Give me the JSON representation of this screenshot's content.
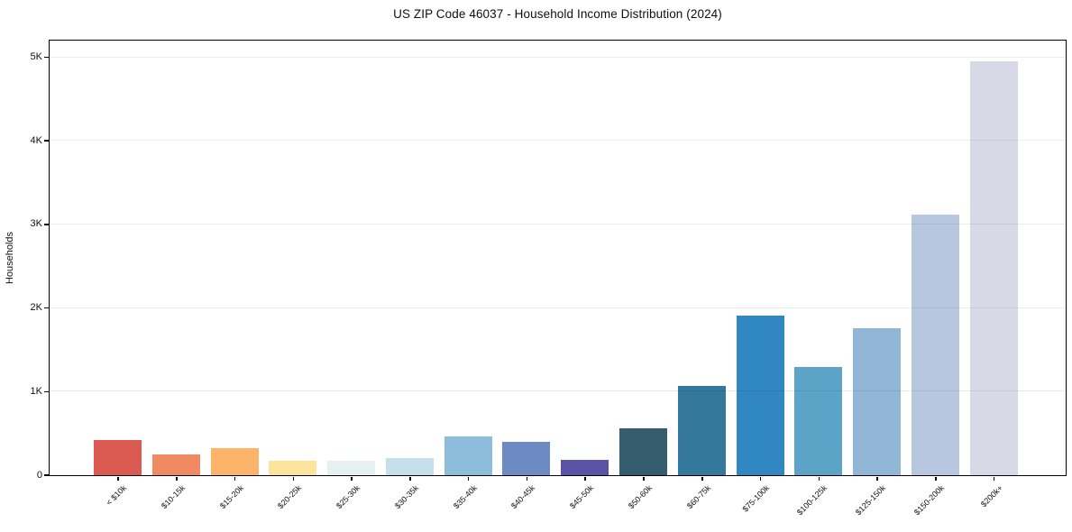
{
  "chart_data": {
    "type": "bar",
    "title": "US ZIP Code 46037 - Household Income Distribution (2024)",
    "xlabel": "",
    "ylabel": "Households",
    "categories": [
      "< $10k",
      "$10-15k",
      "$15-20k",
      "$20-25k",
      "$25-30k",
      "$30-35k",
      "$35-40k",
      "$40-45k",
      "$45-50k",
      "$50-60k",
      "$60-75k",
      "$75-100k",
      "$100-125k",
      "$125-150k",
      "$150-200k",
      "$200k+"
    ],
    "values": [
      420,
      240,
      320,
      165,
      170,
      200,
      455,
      395,
      175,
      555,
      1060,
      1900,
      1290,
      1750,
      3110,
      4945
    ],
    "bar_colors": [
      "#db5a52",
      "#f08a62",
      "#fbb469",
      "#fce49c",
      "#e4f1f0",
      "#c5dfeb",
      "#8ebcdb",
      "#6d8ac4",
      "#5b53a6",
      "#355d6d",
      "#35789d",
      "#3087c1",
      "#5ba4c8",
      "#92b6d5",
      "#b9c6df",
      "#d8d9e6"
    ],
    "ylim": [
      0,
      5200
    ],
    "ytick_values": [
      0,
      1000,
      2000,
      3000,
      4000,
      5000
    ],
    "ytick_labels": [
      "0",
      "1K",
      "2K",
      "3K",
      "4K",
      "5K"
    ],
    "grid": "horizontal",
    "legend": "none",
    "background_color": "#ffffff",
    "axis_color": "#000000",
    "grid_color": "#ebebeb",
    "text_color": "#111111"
  }
}
